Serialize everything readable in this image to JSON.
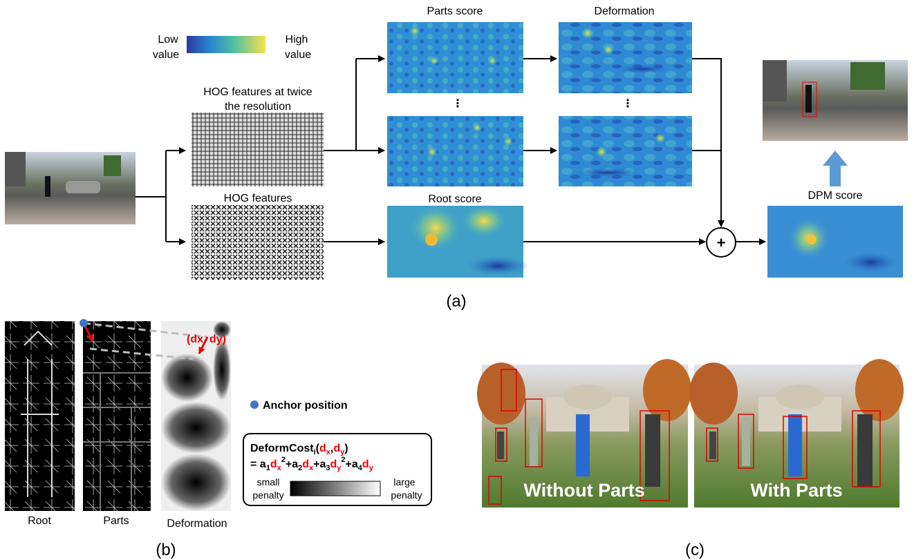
{
  "colorbar": {
    "low": [
      "Low",
      "value"
    ],
    "high": [
      "High",
      "value"
    ]
  },
  "panel_a": {
    "hog_twice": [
      "HOG features at twice",
      "the resolution"
    ],
    "hog": "HOG features",
    "parts_score": "Parts score",
    "deformation": "Deformation",
    "ellipsis": "⋮",
    "root_score": "Root score",
    "plus": "+",
    "dpm_score": "DPM score",
    "caption": "(a)"
  },
  "panel_b": {
    "displacement": "(dx, dy)",
    "anchor": "Anchor position",
    "deform_cost": {
      "title": [
        "DeformCost",
        "i",
        "(",
        "d",
        "x",
        ",",
        "d",
        "y",
        ")"
      ],
      "formula": [
        "= a",
        "1",
        "d",
        "x",
        "2",
        "+a",
        "2",
        "d",
        "x",
        "+a",
        "3",
        "d",
        "y",
        "2",
        "+a",
        "4",
        "d",
        "y"
      ],
      "small": [
        "small",
        "penalty"
      ],
      "large": [
        "large",
        "penalty"
      ]
    },
    "root": "Root",
    "parts": "Parts",
    "deformation": "Deformation",
    "caption": "(b)"
  },
  "panel_c": {
    "without": "Without Parts",
    "with": "With Parts",
    "caption": "(c)"
  }
}
